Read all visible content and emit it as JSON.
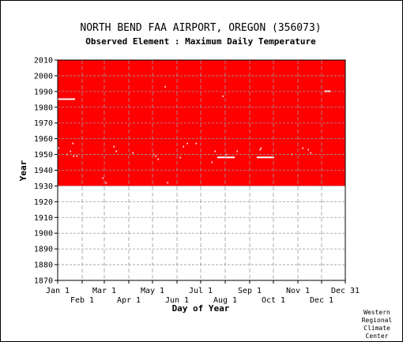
{
  "chart_data": {
    "type": "heatmap",
    "title": "NORTH BEND FAA AIRPORT, OREGON   (356073)",
    "subtitle": "Observed Element : Maximum Daily Temperature",
    "xlabel": "Day of Year",
    "ylabel": "Year",
    "xlim": [
      1,
      365
    ],
    "ylim": [
      1870,
      2010
    ],
    "y_ticks": [
      1870,
      1880,
      1890,
      1900,
      1910,
      1920,
      1930,
      1940,
      1950,
      1960,
      1970,
      1980,
      1990,
      2000,
      2010
    ],
    "x_ticks_upper": [
      {
        "label": "Jan 1",
        "day": 1
      },
      {
        "label": "Mar 1",
        "day": 60
      },
      {
        "label": "May 1",
        "day": 121
      },
      {
        "label": "Jul 1",
        "day": 182
      },
      {
        "label": "Sep 1",
        "day": 244
      },
      {
        "label": "Nov 1",
        "day": 305
      },
      {
        "label": "Dec 31",
        "day": 365
      }
    ],
    "x_ticks_lower": [
      {
        "label": "Feb 1",
        "day": 32
      },
      {
        "label": "Apr 1",
        "day": 91
      },
      {
        "label": "Jun 1",
        "day": 152
      },
      {
        "label": "Aug 1",
        "day": 213
      },
      {
        "label": "Oct 1",
        "day": 274
      },
      {
        "label": "Dec 1",
        "day": 335
      }
    ],
    "grid": true,
    "data_color": "#ff0000",
    "missing_color": "#ffffff",
    "record_years": [
      1930,
      2010
    ],
    "missing_runs": [
      {
        "year": 1985,
        "start_day": 1,
        "end_day": 23
      },
      {
        "year": 1948,
        "start_day": 203,
        "end_day": 225
      },
      {
        "year": 1948,
        "start_day": 253,
        "end_day": 275
      },
      {
        "year": 1990,
        "start_day": 339,
        "end_day": 346
      }
    ],
    "missing_points": [
      {
        "year": 1957,
        "day": 20
      },
      {
        "year": 1952,
        "day": 17
      },
      {
        "year": 1949,
        "day": 21
      },
      {
        "year": 1949,
        "day": 25
      },
      {
        "year": 1950,
        "day": 13
      },
      {
        "year": 1954,
        "day": 2
      },
      {
        "year": 1935,
        "day": 58
      },
      {
        "year": 1932,
        "day": 62
      },
      {
        "year": 1955,
        "day": 72
      },
      {
        "year": 1952,
        "day": 75
      },
      {
        "year": 1951,
        "day": 96
      },
      {
        "year": 1950,
        "day": 122
      },
      {
        "year": 1949,
        "day": 125
      },
      {
        "year": 1947,
        "day": 128
      },
      {
        "year": 1993,
        "day": 137
      },
      {
        "year": 1932,
        "day": 140
      },
      {
        "year": 1948,
        "day": 156
      },
      {
        "year": 1955,
        "day": 160
      },
      {
        "year": 1957,
        "day": 165
      },
      {
        "year": 1957,
        "day": 176
      },
      {
        "year": 1945,
        "day": 196
      },
      {
        "year": 1952,
        "day": 200
      },
      {
        "year": 1987,
        "day": 210
      },
      {
        "year": 1950,
        "day": 214
      },
      {
        "year": 1952,
        "day": 228
      },
      {
        "year": 1954,
        "day": 258
      },
      {
        "year": 1953,
        "day": 257
      },
      {
        "year": 1950,
        "day": 297
      },
      {
        "year": 1954,
        "day": 311
      },
      {
        "year": 1953,
        "day": 318
      },
      {
        "year": 1951,
        "day": 321
      }
    ],
    "credit": [
      "Western",
      "Regional",
      "Climate",
      "Center"
    ]
  }
}
